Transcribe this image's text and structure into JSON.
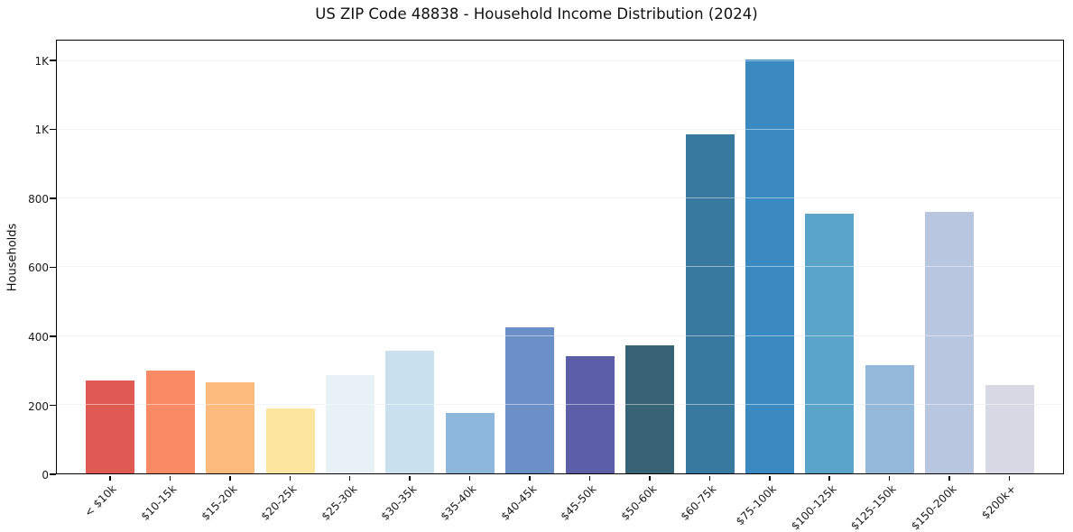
{
  "title": "US ZIP Code 48838 - Household Income Distribution (2024)",
  "chart_data": {
    "type": "bar",
    "title": "US ZIP Code 48838 - Household Income Distribution (2024)",
    "xlabel": "",
    "ylabel": "Households",
    "categories": [
      "< $10k",
      "$10-15k",
      "$15-20k",
      "$20-25k",
      "$25-30k",
      "$30-35k",
      "$35-40k",
      "$40-45k",
      "$45-50k",
      "$50-60k",
      "$60-75k",
      "$75-100k",
      "$100-125k",
      "$125-150k",
      "$150-200k",
      "$200k+"
    ],
    "values": [
      270,
      300,
      265,
      188,
      286,
      356,
      176,
      426,
      341,
      374,
      987,
      1205,
      757,
      314,
      762,
      256
    ],
    "bar_colors": [
      "#de5a52",
      "#f88b66",
      "#fcbb7c",
      "#fde5a0",
      "#e7f1f6",
      "#c9e0ee",
      "#8eb8db",
      "#6a90c7",
      "#5c5fa8",
      "#386275",
      "#38799f",
      "#3a8ac1",
      "#5ba4c9",
      "#93b8d9",
      "#b9c6df",
      "#d8d9e4"
    ],
    "ylim": [
      0,
      1260
    ],
    "ytick_values": [
      0,
      200,
      400,
      600,
      800,
      1000,
      1200
    ],
    "ytick_labels": [
      "0",
      "200",
      "400",
      "600",
      "800",
      "1K",
      "1K"
    ],
    "x_tick_rotation_deg": 45,
    "grid": "horizontal",
    "legend": "none",
    "background_color": "#ffffff",
    "axes_edge_color": "#000000",
    "gridline_color": "#e9e9e9"
  }
}
